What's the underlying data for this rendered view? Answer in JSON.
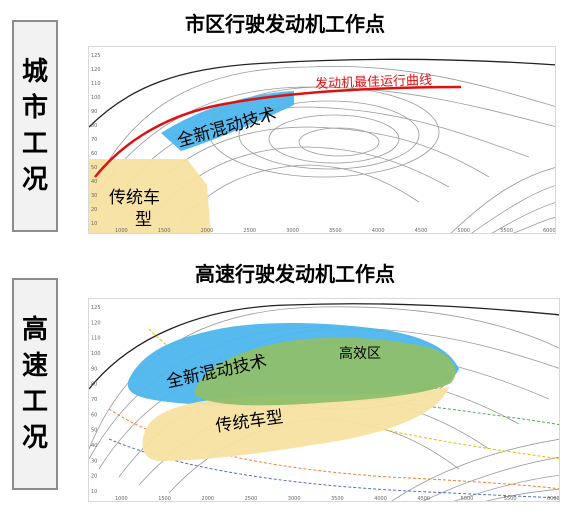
{
  "city": {
    "side_label": [
      "城",
      "市",
      "工",
      "况"
    ],
    "title": "市区行驶发动机工作点",
    "red_curve_label": "发动机最佳运行曲线",
    "hybrid_label": "全新混动技术",
    "conventional_label_line1": "传统车",
    "conventional_label_line2": "型",
    "y_ticks": [
      "125",
      "120",
      "110",
      "100",
      "90",
      "80",
      "70",
      "60",
      "50",
      "40",
      "30",
      "20",
      "10"
    ],
    "x_ticks": [
      "1000",
      "1500",
      "2000",
      "2500",
      "3000",
      "3500",
      "4000",
      "4500",
      "5000",
      "5500",
      "6000"
    ]
  },
  "highway": {
    "side_label": [
      "高",
      "速",
      "工",
      "况"
    ],
    "title": "高速行驶发动机工作点",
    "hybrid_label": "全新混动技术",
    "efficiency_label": "高效区",
    "conventional_label": "传统车型",
    "y_ticks": [
      "125",
      "120",
      "110",
      "100",
      "90",
      "80",
      "70",
      "60",
      "50",
      "40",
      "30",
      "20",
      "10"
    ],
    "x_ticks": [
      "1000",
      "1500",
      "2000",
      "2500",
      "3000",
      "3500",
      "4000",
      "4500",
      "5000",
      "5500",
      "6000"
    ]
  },
  "colors": {
    "red_curve": "#e01010",
    "hybrid_blue": "#4db6ee",
    "conventional_yellow": "#f8e2a2",
    "efficiency_green": "#8fbf6a",
    "contour": "#9a9a9a"
  }
}
